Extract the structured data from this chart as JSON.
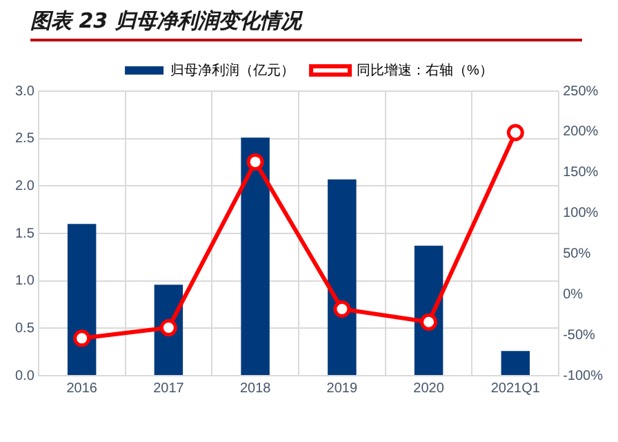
{
  "chart_data": {
    "type": "bar",
    "title": "图表 23   归母净利润变化情况",
    "categories": [
      "2016",
      "2017",
      "2018",
      "2019",
      "2020",
      "2021Q1"
    ],
    "series": [
      {
        "name": "归母净利润（亿元）",
        "color": "#003a7d",
        "values": [
          1.6,
          0.96,
          2.51,
          2.07,
          1.37,
          0.26
        ]
      },
      {
        "name": "同比增速：右轴（%）",
        "type": "line",
        "axis": "y2",
        "color": "#ff0000",
        "marker": "circle",
        "values": [
          -54,
          -41,
          163,
          -18,
          -34,
          199
        ]
      }
    ],
    "ylim": [
      0,
      3
    ],
    "yticks": [
      {
        "value": 0,
        "label": "0.0"
      },
      0.5,
      {
        "value": 1,
        "label": "1.0"
      },
      1.5,
      {
        "value": 2,
        "label": "2.0"
      },
      2.5,
      {
        "value": 3,
        "label": "3.0"
      }
    ],
    "y2lim": [
      -100,
      250
    ],
    "y2ticks": [
      {
        "value": -100,
        "label": "-100%"
      },
      {
        "value": -50,
        "label": "-50%"
      },
      {
        "value": 0,
        "label": "0%"
      },
      {
        "value": 50,
        "label": "50%"
      },
      {
        "value": 100,
        "label": "100%"
      },
      {
        "value": 150,
        "label": "150%"
      },
      {
        "value": 200,
        "label": "200%"
      },
      {
        "value": 250,
        "label": "250%"
      }
    ],
    "grid": true,
    "legend": "top"
  }
}
